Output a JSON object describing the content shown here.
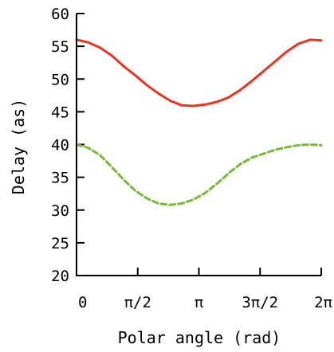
{
  "chart_data": {
    "type": "line",
    "xlabel": "Polar angle (rad)",
    "ylabel": "Delay (as)",
    "xlim": [
      0,
      6.2832
    ],
    "ylim": [
      20,
      60
    ],
    "x_ticks": [
      {
        "value": 0,
        "label": "0"
      },
      {
        "value": 1.5708,
        "label": "π/2"
      },
      {
        "value": 3.1416,
        "label": "π"
      },
      {
        "value": 4.7124,
        "label": "3π/2"
      },
      {
        "value": 6.2832,
        "label": "2π"
      }
    ],
    "y_ticks": [
      20,
      25,
      30,
      35,
      40,
      45,
      50,
      55,
      60
    ],
    "grid": false,
    "series": [
      {
        "color": "#ee3322",
        "line_style": "solid",
        "points": [
          [
            0,
            56
          ],
          [
            0.3,
            55.6
          ],
          [
            0.6,
            54.8
          ],
          [
            0.9,
            53.6
          ],
          [
            1.2,
            52.0
          ],
          [
            1.5,
            50.6
          ],
          [
            1.8,
            49.1
          ],
          [
            2.1,
            47.8
          ],
          [
            2.4,
            46.7
          ],
          [
            2.7,
            46.0
          ],
          [
            3.0,
            45.9
          ],
          [
            3.3,
            46.1
          ],
          [
            3.6,
            46.5
          ],
          [
            3.9,
            47.2
          ],
          [
            4.2,
            48.3
          ],
          [
            4.5,
            49.7
          ],
          [
            4.8,
            51.2
          ],
          [
            5.1,
            52.7
          ],
          [
            5.4,
            54.2
          ],
          [
            5.7,
            55.4
          ],
          [
            6.0,
            56.0
          ],
          [
            6.2832,
            55.9
          ]
        ]
      },
      {
        "color": "#77bb33",
        "line_style": "dashed",
        "points": [
          [
            0,
            40
          ],
          [
            0.3,
            39.5
          ],
          [
            0.6,
            38.4
          ],
          [
            0.9,
            36.6
          ],
          [
            1.2,
            34.7
          ],
          [
            1.5,
            33.0
          ],
          [
            1.8,
            31.8
          ],
          [
            2.1,
            31.0
          ],
          [
            2.4,
            30.8
          ],
          [
            2.7,
            31.0
          ],
          [
            3.0,
            31.6
          ],
          [
            3.3,
            32.6
          ],
          [
            3.6,
            34.0
          ],
          [
            3.9,
            35.6
          ],
          [
            4.2,
            37.0
          ],
          [
            4.5,
            38.0
          ],
          [
            4.8,
            38.6
          ],
          [
            5.1,
            39.2
          ],
          [
            5.4,
            39.6
          ],
          [
            5.7,
            39.9
          ],
          [
            6.0,
            40.0
          ],
          [
            6.2832,
            39.9
          ]
        ]
      }
    ]
  }
}
